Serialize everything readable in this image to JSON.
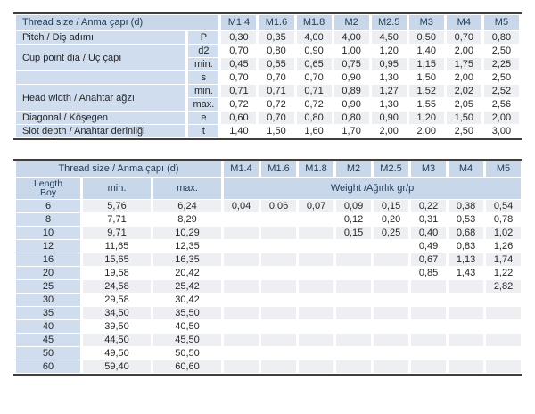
{
  "colors": {
    "header_blue": "#c8d8ea",
    "label_blue": "#cfddef",
    "weight_band_blue": "#d9e4f1",
    "stripe": "#edeff3",
    "border": "#3f3f3f",
    "text": "#262626",
    "header_text": "#1f3a57"
  },
  "size_columns": [
    "M1.4",
    "M1.6",
    "M1.8",
    "M2",
    "M2.5",
    "M3",
    "M4",
    "M5"
  ],
  "spec_table": {
    "title_label": "Thread size / Anma çapı (d)",
    "rows": [
      {
        "label": "Pitch / Diş adımı",
        "labelRowspan": 1,
        "sub": "P",
        "values": [
          "0,30",
          "0,35",
          "4,00",
          "4,00",
          "4,50",
          "0,50",
          "0,70",
          "0,80"
        ]
      },
      {
        "label": "Cup point dia / Uç çapı",
        "labelRowspan": 2,
        "sub": "d2",
        "values": [
          "0,70",
          "0,80",
          "0,90",
          "1,00",
          "1,20",
          "1,40",
          "2,00",
          "2,50"
        ]
      },
      {
        "sub": "min.",
        "values": [
          "0,45",
          "0,55",
          "0,65",
          "0,75",
          "0,95",
          "1,15",
          "1,75",
          "2,25"
        ]
      },
      {
        "label": "",
        "labelRowspan": 1,
        "sub": "s",
        "values": [
          "0,70",
          "0,70",
          "0,70",
          "0,90",
          "1,30",
          "1,50",
          "2,00",
          "2,50"
        ]
      },
      {
        "label": "Head width / Anahtar ağzı",
        "labelRowspan": 2,
        "sub": "min.",
        "values": [
          "0,71",
          "0,71",
          "0,71",
          "0,89",
          "1,27",
          "1,52",
          "2,02",
          "2,52"
        ]
      },
      {
        "sub": "max.",
        "values": [
          "0,72",
          "0,72",
          "0,72",
          "0,90",
          "1,30",
          "1,55",
          "2,05",
          "2,56"
        ]
      },
      {
        "label": "Diagonal / Köşegen",
        "labelRowspan": 1,
        "sub": "e",
        "values": [
          "0,60",
          "0,70",
          "0,80",
          "0,80",
          "0,90",
          "1,20",
          "1,50",
          "2,00"
        ]
      },
      {
        "label": "Slot depth / Anahtar derinliği",
        "labelRowspan": 1,
        "sub": "t",
        "values": [
          "1,40",
          "1,50",
          "1,60",
          "1,70",
          "2,00",
          "2,00",
          "2,50",
          "3,00"
        ]
      }
    ]
  },
  "weight_table": {
    "title_label": "Thread size / Anma çapı (d)",
    "length_header": {
      "line1": "Length",
      "line2": "Boy"
    },
    "min_header": "min.",
    "max_header": "max.",
    "weight_header": "Weight /Ağırlık gr/p",
    "rows": [
      {
        "length": "6",
        "min": "5,76",
        "max": "6,24",
        "weights": [
          "0,04",
          "0,06",
          "0,07",
          "0,09",
          "0,15",
          "0,22",
          "0,38",
          "0,54"
        ]
      },
      {
        "length": "8",
        "min": "7,71",
        "max": "8,29",
        "weights": [
          "",
          "",
          "",
          "0,12",
          "0,20",
          "0,31",
          "0,53",
          "0,78"
        ]
      },
      {
        "length": "10",
        "min": "9,71",
        "max": "10,29",
        "weights": [
          "",
          "",
          "",
          "0,15",
          "0,25",
          "0,40",
          "0,68",
          "1,02"
        ]
      },
      {
        "length": "12",
        "min": "11,65",
        "max": "12,35",
        "weights": [
          "",
          "",
          "",
          "",
          "",
          "0,49",
          "0,83",
          "1,26"
        ]
      },
      {
        "length": "16",
        "min": "15,65",
        "max": "16,35",
        "weights": [
          "",
          "",
          "",
          "",
          "",
          "0,67",
          "1,13",
          "1,74"
        ]
      },
      {
        "length": "20",
        "min": "19,58",
        "max": "20,42",
        "weights": [
          "",
          "",
          "",
          "",
          "",
          "0,85",
          "1,43",
          "1,22"
        ]
      },
      {
        "length": "25",
        "min": "24,58",
        "max": "25,42",
        "weights": [
          "",
          "",
          "",
          "",
          "",
          "",
          "",
          "2,82"
        ]
      },
      {
        "length": "30",
        "min": "29,58",
        "max": "30,42",
        "weights": [
          "",
          "",
          "",
          "",
          "",
          "",
          "",
          ""
        ]
      },
      {
        "length": "35",
        "min": "34,50",
        "max": "35,50",
        "weights": [
          "",
          "",
          "",
          "",
          "",
          "",
          "",
          ""
        ]
      },
      {
        "length": "40",
        "min": "39,50",
        "max": "40,50",
        "weights": [
          "",
          "",
          "",
          "",
          "",
          "",
          "",
          ""
        ]
      },
      {
        "length": "45",
        "min": "44,50",
        "max": "45,50",
        "weights": [
          "",
          "",
          "",
          "",
          "",
          "",
          "",
          ""
        ]
      },
      {
        "length": "50",
        "min": "49,50",
        "max": "50,50",
        "weights": [
          "",
          "",
          "",
          "",
          "",
          "",
          "",
          ""
        ]
      },
      {
        "length": "60",
        "min": "59,40",
        "max": "60,60",
        "weights": [
          "",
          "",
          "",
          "",
          "",
          "",
          "",
          ""
        ]
      }
    ]
  }
}
